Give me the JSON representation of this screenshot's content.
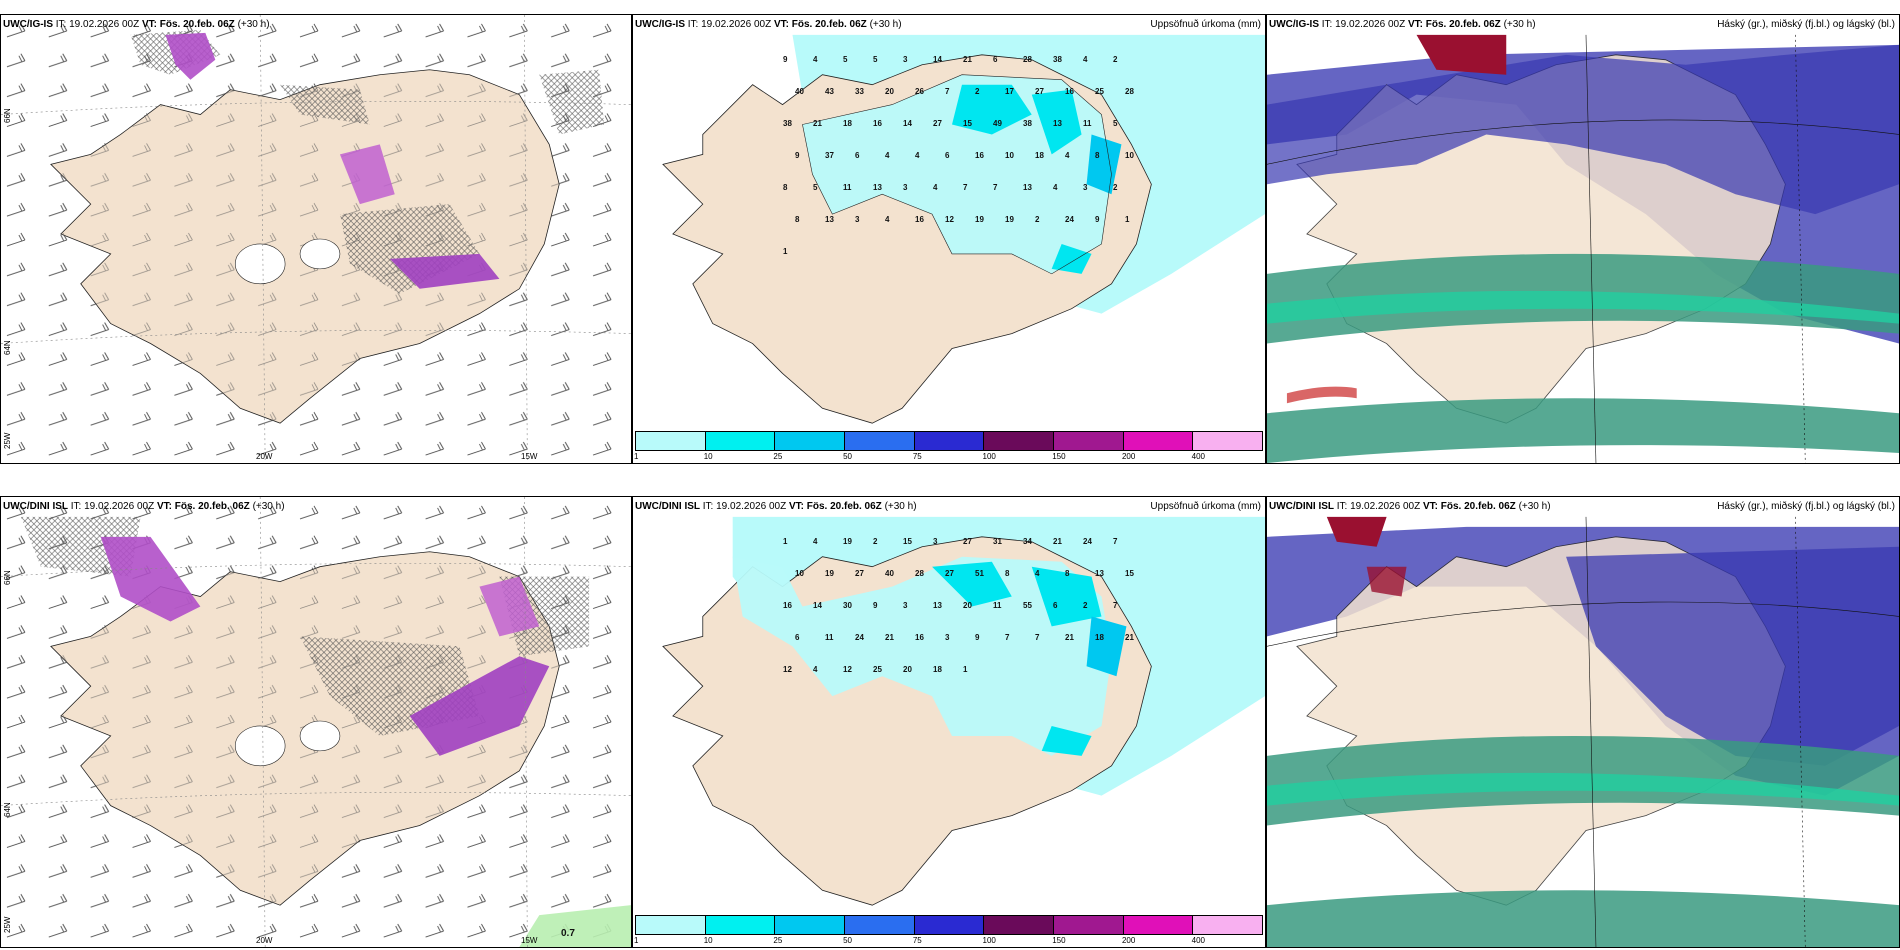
{
  "rows": [
    {
      "model": "UWC/IG-IS",
      "it_label": "IT:",
      "it_value": "19.02.2026 00Z",
      "vt_label": "VT:",
      "vt_value": "Fös. 20.feb. 06Z",
      "lead": "(+30 h)"
    },
    {
      "model": "UWC/DINI ISL",
      "it_label": "IT:",
      "it_value": "19.02.2026 00Z",
      "vt_label": "VT:",
      "vt_value": "Fös. 20.feb. 06Z",
      "lead": "(+30 h)"
    }
  ],
  "precip_title": "Uppsöfnuð úrkoma (mm)",
  "cloud_title": "Háský (gr.), miðský (fj.bl.) og lágský (bl.)",
  "lon_labels": [
    "20W",
    "15W"
  ],
  "lat_labels": [
    "66N",
    "64N"
  ],
  "lon_labels_left": [
    "25W"
  ],
  "corner_value_row2": "0.7",
  "colorbar": {
    "ticks": [
      "1",
      "10",
      "25",
      "50",
      "75",
      "100",
      "150",
      "200",
      "400"
    ],
    "colors": [
      "#b8fafa",
      "#00f0f0",
      "#00c8f0",
      "#2a6ef0",
      "#2a2ad2",
      "#6a0a5a",
      "#a01890",
      "#e010b8",
      "#f8b0f0"
    ]
  },
  "precip_values_row1": [
    "9",
    "4",
    "5",
    "5",
    "3",
    "14",
    "21",
    "6",
    "28",
    "38",
    "4",
    "2",
    "40",
    "43",
    "33",
    "20",
    "26",
    "7",
    "2",
    "17",
    "27",
    "16",
    "25",
    "28",
    "38",
    "21",
    "18",
    "16",
    "14",
    "27",
    "15",
    "49",
    "38",
    "13",
    "11",
    "5",
    "9",
    "37",
    "6",
    "4",
    "4",
    "6",
    "16",
    "10",
    "18",
    "4",
    "8",
    "10",
    "8",
    "5",
    "11",
    "13",
    "3",
    "4",
    "7",
    "7",
    "13",
    "4",
    "3",
    "2",
    "8",
    "13",
    "3",
    "4",
    "16",
    "12",
    "19",
    "19",
    "2",
    "24",
    "9",
    "1",
    "1"
  ],
  "precip_values_row2": [
    "1",
    "4",
    "19",
    "2",
    "15",
    "3",
    "27",
    "31",
    "34",
    "21",
    "24",
    "7",
    "10",
    "19",
    "27",
    "40",
    "28",
    "27",
    "51",
    "8",
    "4",
    "8",
    "13",
    "15",
    "16",
    "14",
    "30",
    "9",
    "3",
    "13",
    "20",
    "11",
    "55",
    "6",
    "2",
    "7",
    "6",
    "11",
    "24",
    "21",
    "16",
    "3",
    "9",
    "7",
    "7",
    "21",
    "18",
    "21",
    "12",
    "4",
    "12",
    "25",
    "20",
    "18",
    "1"
  ]
}
